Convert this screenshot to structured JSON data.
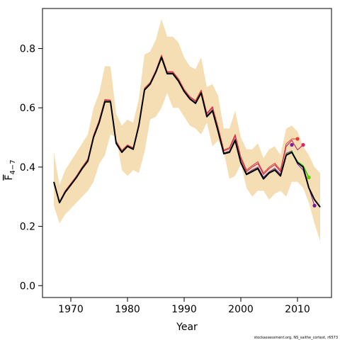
{
  "chart_data": {
    "type": "line",
    "xlabel": "Year",
    "ylabel": "F",
    "ylabel_subscript": "4−7",
    "xlim": [
      1965,
      2016
    ],
    "ylim": [
      -0.04,
      0.935
    ],
    "xticks": [
      1970,
      1980,
      1990,
      2000,
      2010
    ],
    "yticks": [
      "0.0",
      "0.2",
      "0.4",
      "0.6",
      "0.8"
    ],
    "credit": "stockassessment.org, NS_saithe_cortest, r6573",
    "band": {
      "color": "#f5deb3",
      "x": [
        1967,
        1968,
        1969,
        1970,
        1971,
        1972,
        1973,
        1974,
        1975,
        1976,
        1977,
        1978,
        1979,
        1980,
        1981,
        1982,
        1983,
        1984,
        1985,
        1986,
        1987,
        1988,
        1989,
        1990,
        1991,
        1992,
        1993,
        1994,
        1995,
        1996,
        1997,
        1998,
        1999,
        2000,
        2001,
        2002,
        2003,
        2004,
        2005,
        2006,
        2007,
        2008,
        2009,
        2010,
        2011,
        2012,
        2013,
        2014
      ],
      "upper": [
        0.45,
        0.34,
        0.39,
        0.42,
        0.45,
        0.48,
        0.51,
        0.6,
        0.65,
        0.74,
        0.74,
        0.58,
        0.54,
        0.56,
        0.55,
        0.63,
        0.78,
        0.79,
        0.83,
        0.9,
        0.84,
        0.84,
        0.82,
        0.77,
        0.74,
        0.73,
        0.77,
        0.67,
        0.68,
        0.64,
        0.53,
        0.53,
        0.59,
        0.5,
        0.46,
        0.46,
        0.48,
        0.43,
        0.46,
        0.47,
        0.44,
        0.53,
        0.54,
        0.52,
        0.47,
        0.44,
        0.4,
        0.38
      ],
      "lower": [
        0.27,
        0.21,
        0.24,
        0.26,
        0.28,
        0.3,
        0.32,
        0.35,
        0.41,
        0.44,
        0.51,
        0.5,
        0.39,
        0.37,
        0.39,
        0.38,
        0.45,
        0.56,
        0.57,
        0.6,
        0.65,
        0.6,
        0.6,
        0.57,
        0.54,
        0.53,
        0.51,
        0.55,
        0.47,
        0.49,
        0.45,
        0.36,
        0.37,
        0.41,
        0.33,
        0.3,
        0.32,
        0.32,
        0.29,
        0.31,
        0.32,
        0.3,
        0.35,
        0.35,
        0.33,
        0.28,
        0.21,
        0.15
      ]
    },
    "series": [
      {
        "color": "#000000",
        "width": 2,
        "x": [
          1967,
          1968,
          1969,
          1970,
          1971,
          1972,
          1973,
          1974,
          1975,
          1976,
          1977,
          1978,
          1979,
          1980,
          1981,
          1982,
          1983,
          1984,
          1985,
          1986,
          1987,
          1988,
          1989,
          1990,
          1991,
          1992,
          1993,
          1994,
          1995,
          1996,
          1997,
          1998,
          1999,
          2000,
          2001,
          2002,
          2003,
          2004,
          2005,
          2006,
          2007,
          2008,
          2009,
          2010,
          2011,
          2012,
          2013,
          2014
        ],
        "values": [
          0.35,
          0.28,
          0.315,
          0.34,
          0.365,
          0.395,
          0.42,
          0.5,
          0.55,
          0.62,
          0.62,
          0.48,
          0.45,
          0.47,
          0.46,
          0.54,
          0.66,
          0.68,
          0.72,
          0.77,
          0.715,
          0.715,
          0.69,
          0.655,
          0.63,
          0.615,
          0.65,
          0.57,
          0.59,
          0.52,
          0.445,
          0.45,
          0.49,
          0.415,
          0.375,
          0.385,
          0.395,
          0.36,
          0.38,
          0.39,
          0.37,
          0.44,
          0.45,
          0.415,
          0.4,
          0.33,
          0.29,
          0.265
        ]
      },
      {
        "color": "#c2185b",
        "width": 1,
        "x": [
          1967,
          1968,
          1969,
          1970,
          1971,
          1972,
          1973,
          1974,
          1975,
          1976,
          1977,
          1978,
          1979,
          1980,
          1981,
          1982,
          1983,
          1984,
          1985,
          1986,
          1987,
          1988,
          1989,
          1990,
          1991,
          1992,
          1993,
          1994,
          1995,
          1996,
          1997,
          1998,
          1999,
          2000,
          2001,
          2002,
          2003,
          2004,
          2005,
          2006,
          2007,
          2008,
          2009,
          2010,
          2011
        ],
        "values": [
          0.348,
          0.282,
          0.318,
          0.344,
          0.37,
          0.4,
          0.426,
          0.505,
          0.556,
          0.626,
          0.624,
          0.486,
          0.455,
          0.474,
          0.464,
          0.545,
          0.665,
          0.684,
          0.724,
          0.775,
          0.72,
          0.72,
          0.696,
          0.66,
          0.636,
          0.622,
          0.658,
          0.58,
          0.6,
          0.53,
          0.455,
          0.462,
          0.505,
          0.43,
          0.385,
          0.4,
          0.412,
          0.375,
          0.395,
          0.408,
          0.385,
          0.47,
          0.49,
          0.458,
          0.475
        ]
      },
      {
        "color": "#e53935",
        "width": 1,
        "x": [
          1967,
          1968,
          1969,
          1970,
          1971,
          1972,
          1973,
          1974,
          1975,
          1976,
          1977,
          1978,
          1979,
          1980,
          1981,
          1982,
          1983,
          1984,
          1985,
          1986,
          1987,
          1988,
          1989,
          1990,
          1991,
          1992,
          1993,
          1994,
          1995,
          1996,
          1997,
          1998,
          1999,
          2000,
          2001,
          2002,
          2003,
          2004,
          2005,
          2006,
          2007,
          2008,
          2009,
          2010
        ],
        "values": [
          0.35,
          0.283,
          0.32,
          0.345,
          0.37,
          0.4,
          0.427,
          0.507,
          0.558,
          0.628,
          0.626,
          0.488,
          0.456,
          0.475,
          0.465,
          0.546,
          0.666,
          0.686,
          0.726,
          0.778,
          0.722,
          0.722,
          0.698,
          0.662,
          0.638,
          0.624,
          0.66,
          0.582,
          0.604,
          0.534,
          0.458,
          0.466,
          0.51,
          0.434,
          0.39,
          0.405,
          0.418,
          0.38,
          0.4,
          0.413,
          0.39,
          0.478,
          0.495,
          0.495
        ]
      },
      {
        "color": "#7b1fa2",
        "width": 1,
        "x": [
          1967,
          1968,
          1969,
          1970,
          1971,
          1972,
          1973,
          1974,
          1975,
          1976,
          1977,
          1978,
          1979,
          1980,
          1981,
          1982,
          1983,
          1984,
          1985,
          1986,
          1987,
          1988,
          1989,
          1990,
          1991,
          1992,
          1993,
          1994,
          1995,
          1996,
          1997,
          1998,
          1999,
          2000,
          2001,
          2002,
          2003,
          2004,
          2005,
          2006,
          2007,
          2008,
          2009,
          2010,
          2011,
          2012,
          2013
        ],
        "values": [
          0.349,
          0.281,
          0.316,
          0.342,
          0.367,
          0.397,
          0.423,
          0.502,
          0.553,
          0.623,
          0.622,
          0.483,
          0.452,
          0.472,
          0.462,
          0.542,
          0.662,
          0.682,
          0.722,
          0.772,
          0.717,
          0.717,
          0.692,
          0.657,
          0.632,
          0.618,
          0.653,
          0.574,
          0.594,
          0.524,
          0.448,
          0.454,
          0.495,
          0.42,
          0.378,
          0.39,
          0.4,
          0.366,
          0.384,
          0.396,
          0.376,
          0.446,
          0.455,
          0.41,
          0.39,
          0.33,
          0.27
        ]
      },
      {
        "color": "#33cc00",
        "width": 1.5,
        "x": [
          1967,
          1968,
          1969,
          1970,
          1971,
          1972,
          1973,
          1974,
          1975,
          1976,
          1977,
          1978,
          1979,
          1980,
          1981,
          1982,
          1983,
          1984,
          1985,
          1986,
          1987,
          1988,
          1989,
          1990,
          1991,
          1992,
          1993,
          1994,
          1995,
          1996,
          1997,
          1998,
          1999,
          2000,
          2001,
          2002,
          2003,
          2004,
          2005,
          2006,
          2007,
          2008,
          2009,
          2010,
          2011,
          2012
        ],
        "values": [
          0.35,
          0.28,
          0.315,
          0.34,
          0.366,
          0.396,
          0.421,
          0.501,
          0.551,
          0.621,
          0.621,
          0.481,
          0.451,
          0.471,
          0.461,
          0.541,
          0.661,
          0.681,
          0.721,
          0.771,
          0.716,
          0.716,
          0.691,
          0.656,
          0.631,
          0.616,
          0.651,
          0.571,
          0.591,
          0.521,
          0.446,
          0.451,
          0.491,
          0.416,
          0.376,
          0.386,
          0.396,
          0.361,
          0.381,
          0.391,
          0.371,
          0.442,
          0.452,
          0.418,
          0.405,
          0.365
        ]
      }
    ],
    "terminal_points": [
      {
        "x": 2009,
        "y": 0.475,
        "color": "#7b1fa2"
      },
      {
        "x": 2010,
        "y": 0.495,
        "color": "#e53935"
      },
      {
        "x": 2011,
        "y": 0.475,
        "color": "#e91e63"
      },
      {
        "x": 2012,
        "y": 0.365,
        "color": "#66cc00"
      },
      {
        "x": 2013,
        "y": 0.27,
        "color": "#6a1b9a"
      }
    ]
  }
}
